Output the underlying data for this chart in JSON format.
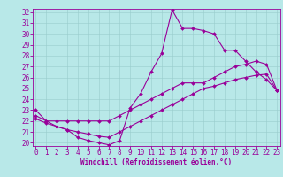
{
  "xlabel": "Windchill (Refroidissement éolien,°C)",
  "xlim": [
    0,
    23
  ],
  "ylim": [
    20,
    32
  ],
  "xticks": [
    0,
    1,
    2,
    3,
    4,
    5,
    6,
    7,
    8,
    9,
    10,
    11,
    12,
    13,
    14,
    15,
    16,
    17,
    18,
    19,
    20,
    21,
    22,
    23
  ],
  "yticks": [
    20,
    21,
    22,
    23,
    24,
    25,
    26,
    27,
    28,
    29,
    30,
    31,
    32
  ],
  "background_color": "#b8e8e8",
  "line_color": "#990099",
  "line1_y": [
    23,
    22,
    21.5,
    21.2,
    20.5,
    20.2,
    20.0,
    19.8,
    20.2,
    23.2,
    24.5,
    26.5,
    28.2,
    32.2,
    30.5,
    30.5,
    30.3,
    30.0,
    28.5,
    28.5,
    27.5,
    26.5,
    25.8,
    24.8
  ],
  "line2_y": [
    22.5,
    22.0,
    22.0,
    22.0,
    22.0,
    22.0,
    22.0,
    22.0,
    22.5,
    23.0,
    23.5,
    24.0,
    24.5,
    25.0,
    25.5,
    25.5,
    25.5,
    26.0,
    26.5,
    27.0,
    27.2,
    27.5,
    27.2,
    24.8
  ],
  "line3_y": [
    22.2,
    21.8,
    21.5,
    21.2,
    21.0,
    20.8,
    20.6,
    20.5,
    21.0,
    21.5,
    22.0,
    22.5,
    23.0,
    23.5,
    24.0,
    24.5,
    25.0,
    25.2,
    25.5,
    25.8,
    26.0,
    26.2,
    26.3,
    24.8
  ],
  "grid_color": "#99cccc",
  "tick_fontsize": 5.5,
  "marker": "D",
  "marker_size": 2.0,
  "linewidth": 0.8
}
